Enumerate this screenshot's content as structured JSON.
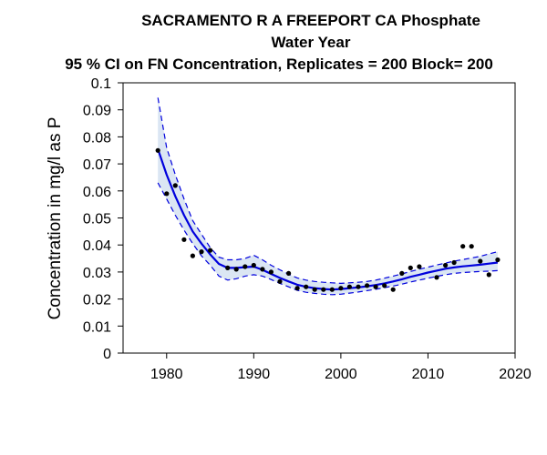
{
  "chart_data": {
    "type": "line",
    "title_lines": [
      "SACRAMENTO R A FREEPORT CA   Phosphate",
      "Water Year",
      "95 % CI on FN Concentration, Replicates = 200 Block= 200"
    ],
    "xlabel": "",
    "ylabel": "Concentration in mg/l as P",
    "xlim": [
      1975,
      2020
    ],
    "ylim": [
      0,
      0.1
    ],
    "xticks": [
      1980,
      1990,
      2000,
      2010,
      2020
    ],
    "xtick_labels": [
      "1980",
      "1990",
      "2000",
      "2010",
      "2020"
    ],
    "yticks": [
      0,
      0.01,
      0.02,
      0.03,
      0.04,
      0.05,
      0.06,
      0.07,
      0.08,
      0.09,
      0.1
    ],
    "ytick_labels": [
      "0",
      "0.01",
      "0.02",
      "0.03",
      "0.04",
      "0.05",
      "0.06",
      "0.07",
      "0.08",
      "0.09",
      "0.1"
    ],
    "grid": false,
    "colors": {
      "series": "#0000dd",
      "band": "#dbe6f3",
      "points": "#000000"
    },
    "observed": {
      "x": [
        1979,
        1980,
        1981,
        1982,
        1983,
        1984,
        1985,
        1987,
        1988,
        1989,
        1990,
        1991,
        1992,
        1993,
        1994,
        1995,
        1996,
        1997,
        1998,
        1999,
        2000,
        2001,
        2002,
        2003,
        2004,
        2005,
        2006,
        2007,
        2008,
        2009,
        2011,
        2012,
        2013,
        2014,
        2015,
        2016,
        2017,
        2018
      ],
      "y": [
        0.075,
        0.059,
        0.062,
        0.042,
        0.036,
        0.0375,
        0.038,
        0.0315,
        0.031,
        0.032,
        0.0325,
        0.031,
        0.03,
        0.0265,
        0.0295,
        0.024,
        0.0245,
        0.0235,
        0.0235,
        0.0235,
        0.024,
        0.0245,
        0.0245,
        0.025,
        0.0245,
        0.025,
        0.0235,
        0.0295,
        0.0315,
        0.032,
        0.028,
        0.0325,
        0.0335,
        0.0395,
        0.0395,
        0.034,
        0.029,
        0.0345
      ]
    },
    "fitted": {
      "x": [
        1979,
        1980,
        1981,
        1982,
        1983,
        1984,
        1985,
        1986,
        1987,
        1988,
        1989,
        1990,
        1991,
        1992,
        1993,
        1994,
        1995,
        1996,
        1997,
        1998,
        1999,
        2000,
        2001,
        2002,
        2003,
        2004,
        2005,
        2006,
        2007,
        2008,
        2009,
        2010,
        2011,
        2012,
        2013,
        2014,
        2015,
        2016,
        2017,
        2018
      ],
      "y": [
        0.0755,
        0.066,
        0.058,
        0.051,
        0.045,
        0.0405,
        0.0365,
        0.033,
        0.0315,
        0.0315,
        0.0318,
        0.032,
        0.0308,
        0.0293,
        0.0278,
        0.0265,
        0.0253,
        0.0245,
        0.024,
        0.0237,
        0.0235,
        0.0237,
        0.024,
        0.0243,
        0.0247,
        0.0252,
        0.0258,
        0.0265,
        0.0273,
        0.0282,
        0.029,
        0.0298,
        0.0305,
        0.0312,
        0.0317,
        0.0321,
        0.0324,
        0.0327,
        0.0331,
        0.0335
      ]
    },
    "upper_ci": {
      "x": [
        1979,
        1980,
        1981,
        1982,
        1983,
        1984,
        1985,
        1986,
        1987,
        1988,
        1989,
        1990,
        1991,
        1992,
        1993,
        1994,
        1995,
        1996,
        1997,
        1998,
        1999,
        2000,
        2001,
        2002,
        2003,
        2004,
        2005,
        2006,
        2007,
        2008,
        2009,
        2010,
        2011,
        2012,
        2013,
        2014,
        2015,
        2016,
        2017,
        2018
      ],
      "y": [
        0.0945,
        0.076,
        0.066,
        0.057,
        0.049,
        0.044,
        0.039,
        0.0355,
        0.0345,
        0.0345,
        0.035,
        0.0362,
        0.0345,
        0.0325,
        0.0308,
        0.0292,
        0.0278,
        0.027,
        0.0265,
        0.0262,
        0.026,
        0.0258,
        0.026,
        0.0262,
        0.0265,
        0.027,
        0.0277,
        0.0285,
        0.0293,
        0.0302,
        0.031,
        0.0318,
        0.0326,
        0.0333,
        0.034,
        0.0346,
        0.0352,
        0.0358,
        0.0367,
        0.0375
      ]
    },
    "lower_ci": {
      "x": [
        1979,
        1980,
        1981,
        1982,
        1983,
        1984,
        1985,
        1986,
        1987,
        1988,
        1989,
        1990,
        1991,
        1992,
        1993,
        1994,
        1995,
        1996,
        1997,
        1998,
        1999,
        2000,
        2001,
        2002,
        2003,
        2004,
        2005,
        2006,
        2007,
        2008,
        2009,
        2010,
        2011,
        2012,
        2013,
        2014,
        2015,
        2016,
        2017,
        2018
      ],
      "y": [
        0.063,
        0.057,
        0.051,
        0.0455,
        0.0405,
        0.036,
        0.0325,
        0.0285,
        0.027,
        0.0275,
        0.0285,
        0.029,
        0.0285,
        0.0272,
        0.0258,
        0.0245,
        0.0232,
        0.0225,
        0.0221,
        0.0218,
        0.0216,
        0.0218,
        0.0222,
        0.0226,
        0.0231,
        0.0236,
        0.0242,
        0.0248,
        0.0255,
        0.0263,
        0.027,
        0.0277,
        0.0284,
        0.029,
        0.0295,
        0.0298,
        0.03,
        0.0302,
        0.0303,
        0.0305
      ]
    }
  }
}
